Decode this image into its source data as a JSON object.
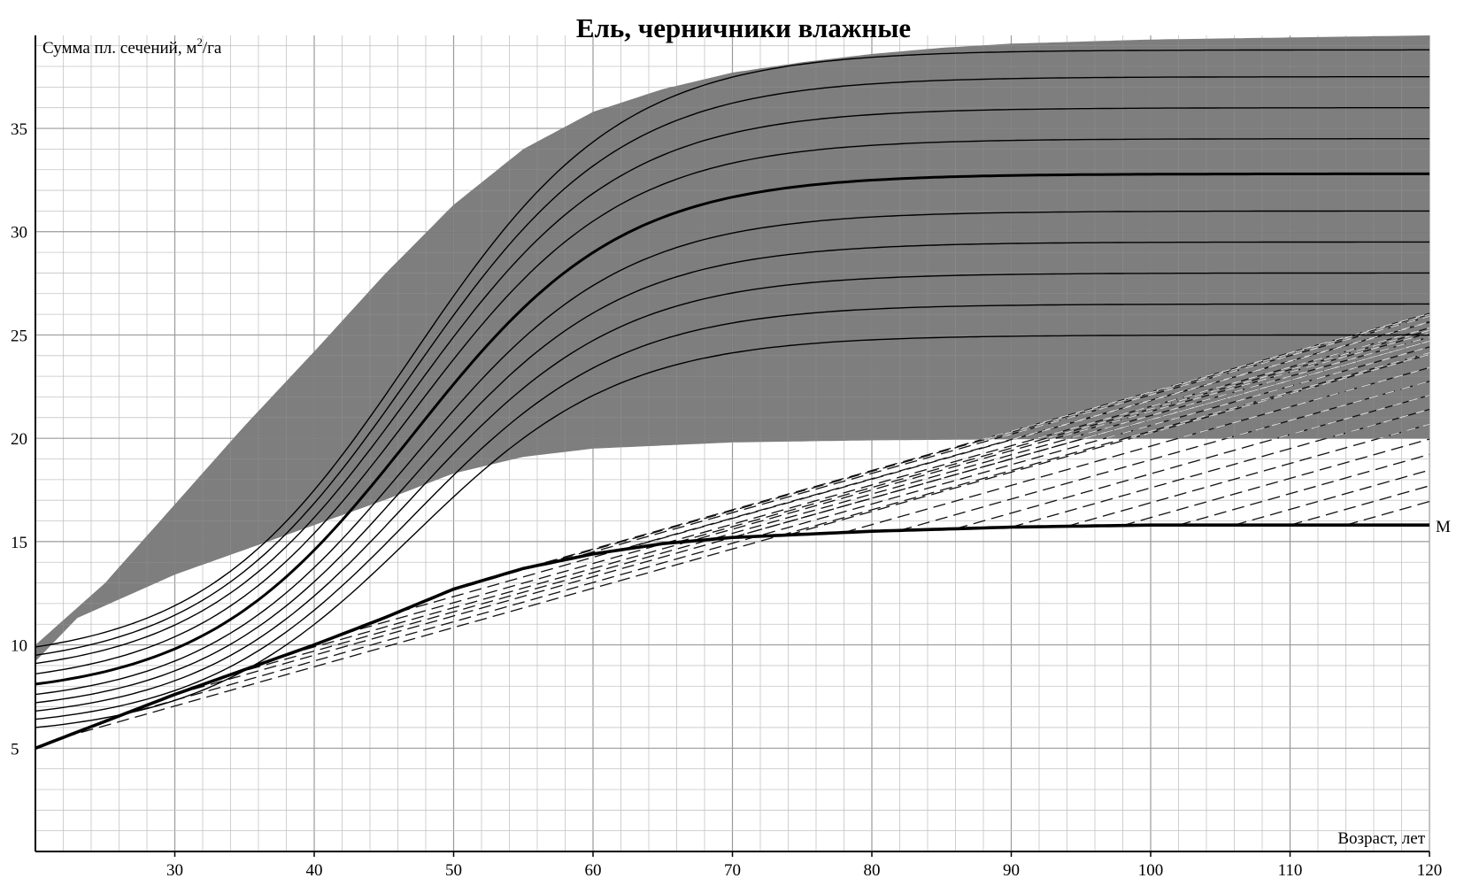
{
  "chart_data": {
    "type": "line",
    "title": "Ель, черничники влажные",
    "ylabel_main": "Сумма пл. сечений, м",
    "ylabel_sup": "2",
    "ylabel_tail": "/га",
    "xlabel": "Возраст, лет",
    "xlim": [
      20,
      120
    ],
    "ylim": [
      0,
      39.5
    ],
    "x_ticks": [
      30,
      40,
      50,
      60,
      70,
      80,
      90,
      100,
      110,
      120
    ],
    "y_ticks": [
      5,
      10,
      15,
      20,
      25,
      30,
      35
    ],
    "grid": true,
    "minor_grid_step": {
      "x": 2,
      "y": 1
    },
    "shaded_region": {
      "description_color": "#5a5a5a",
      "upper": {
        "x": [
          20,
          25,
          30,
          35,
          40,
          45,
          50,
          55,
          60,
          65,
          70,
          75,
          80,
          85,
          90,
          100,
          110,
          120
        ],
        "y": [
          10.0,
          13.0,
          16.8,
          20.6,
          24.2,
          27.9,
          31.3,
          34.0,
          35.8,
          36.9,
          37.7,
          38.2,
          38.6,
          38.9,
          39.1,
          39.3,
          39.4,
          39.5
        ]
      },
      "lower": {
        "x": [
          23,
          30,
          40,
          45,
          50,
          55,
          60,
          70,
          80,
          90,
          100,
          110,
          120
        ],
        "y": [
          11.3,
          13.4,
          15.8,
          17.0,
          18.3,
          19.1,
          19.5,
          19.8,
          19.9,
          19.95,
          20.0,
          20.0,
          20.0
        ]
      }
    },
    "series": [
      {
        "name": "M",
        "x": [
          20,
          25,
          30,
          35,
          40,
          45,
          50,
          55,
          60,
          65,
          70,
          80,
          90,
          100,
          110,
          120
        ],
        "y": [
          5.0,
          6.3,
          7.6,
          8.8,
          10.0,
          11.3,
          12.7,
          13.7,
          14.4,
          14.9,
          15.2,
          15.5,
          15.7,
          15.8,
          15.8,
          15.8
        ]
      }
    ],
    "growth_curves_solid": [
      {
        "start": 6.0,
        "final": 25.0
      },
      {
        "start": 6.4,
        "final": 26.5
      },
      {
        "start": 6.8,
        "final": 28.0
      },
      {
        "start": 7.2,
        "final": 29.5
      },
      {
        "start": 7.6,
        "final": 31.0
      },
      {
        "start": 8.1,
        "final": 32.8
      },
      {
        "start": 8.6,
        "final": 34.5
      },
      {
        "start": 9.1,
        "final": 36.0
      },
      {
        "start": 9.5,
        "final": 37.5
      },
      {
        "start": 9.9,
        "final": 38.8
      }
    ],
    "emphasized_curve_index": 5,
    "dashed_lines_x_start": [
      22,
      26,
      30,
      34,
      38,
      42,
      46,
      50,
      54,
      58,
      62,
      66,
      70,
      74,
      78,
      82,
      86,
      90,
      94,
      98,
      102,
      106,
      110,
      114
    ],
    "dashed_slope": 0.19,
    "curve_label": "M"
  }
}
